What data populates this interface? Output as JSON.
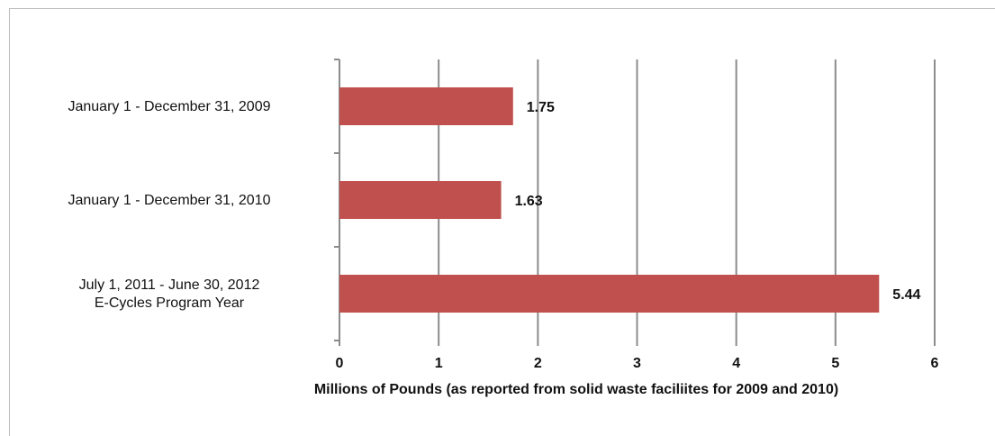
{
  "chart_data": {
    "type": "bar",
    "orientation": "horizontal",
    "categories": [
      [
        "January 1 - December 31, 2009"
      ],
      [
        "January 1 - December 31, 2010"
      ],
      [
        "July 1, 2011 - June 30, 2012",
        "E-Cycles Program Year"
      ]
    ],
    "values": [
      1.75,
      1.63,
      5.44
    ],
    "data_labels": [
      "1.75",
      "1.63",
      "5.44"
    ],
    "title": "",
    "xlabel": "Millions of Pounds (as reported from solid waste faciliites for 2009 and 2010)",
    "ylabel": "",
    "xlim": [
      0,
      6
    ],
    "x_ticks": [
      "0",
      "1",
      "2",
      "3",
      "4",
      "5",
      "6"
    ],
    "grid": "vertical",
    "legend": "none",
    "bar_color": "#c0504d",
    "grid_color": "#8c8c8c"
  }
}
